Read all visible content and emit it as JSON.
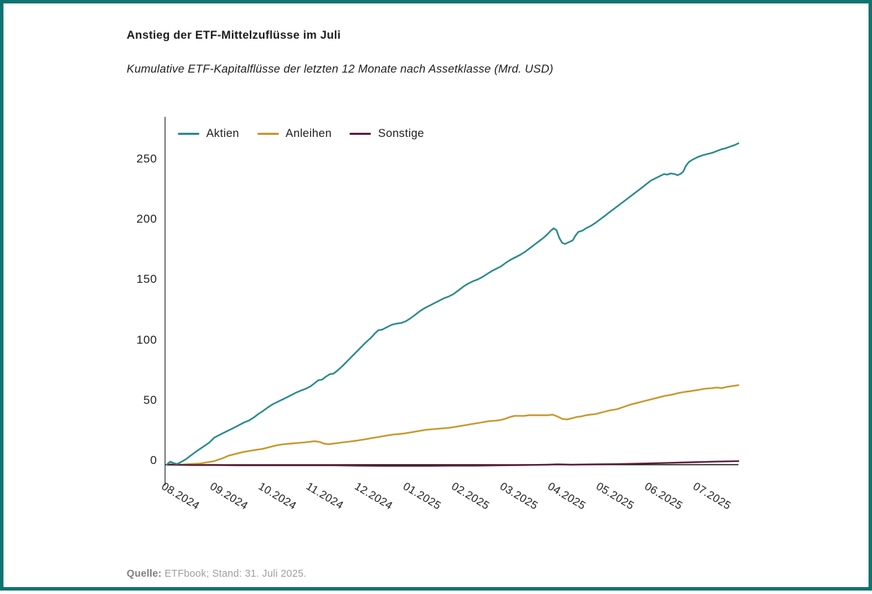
{
  "page": {
    "border_color": "#0e7471",
    "background": "#ffffff"
  },
  "header": {
    "title": "Anstieg der ETF-Mittelzuflüsse im Juli",
    "subtitle": "Kumulative ETF-Kapitalflüsse der letzten 12 Monate nach Assetklasse (Mrd. USD)"
  },
  "source": {
    "label": "Quelle:",
    "text": " ETFbook; Stand: 31. Juli 2025."
  },
  "chart_data": {
    "type": "line",
    "title": "Anstieg der ETF-Mittelzuflüsse im Juli",
    "subtitle": "Kumulative ETF-Kapitalflüsse der letzten 12 Monate nach Assetklasse (Mrd. USD)",
    "unit": "Mrd. USD",
    "grid": false,
    "legend_position": "top-left",
    "x_months": 12,
    "categories": [
      "08.2024",
      "09.2024",
      "10.2024",
      "11.2024",
      "12.2024",
      "01.2025",
      "02.2025",
      "03.2025",
      "04.2025",
      "05.2025",
      "06.2025",
      "07.2025"
    ],
    "y_ticks": [
      0,
      50,
      100,
      150,
      200,
      250
    ],
    "ylim": [
      -15,
      275
    ],
    "axis_color": "#2b2b2b",
    "baseline": {
      "value": 0,
      "color": "#141414"
    },
    "series": [
      {
        "name": "Aktien",
        "color": "#2a8a8c",
        "end_value": 266.5,
        "points": [
          [
            0,
            0
          ],
          [
            0.07,
            2.5
          ],
          [
            0.15,
            1.2
          ],
          [
            0.22,
            0.6
          ],
          [
            0.3,
            2.2
          ],
          [
            0.4,
            4.5
          ],
          [
            0.5,
            7.5
          ],
          [
            0.62,
            11
          ],
          [
            0.75,
            14.5
          ],
          [
            0.88,
            18
          ],
          [
            1.0,
            22.5
          ],
          [
            1.12,
            25
          ],
          [
            1.25,
            27.5
          ],
          [
            1.38,
            30
          ],
          [
            1.5,
            32.5
          ],
          [
            1.62,
            35
          ],
          [
            1.72,
            36.5
          ],
          [
            1.82,
            39
          ],
          [
            1.92,
            42
          ],
          [
            2.02,
            44.5
          ],
          [
            2.12,
            47.5
          ],
          [
            2.22,
            50
          ],
          [
            2.32,
            52
          ],
          [
            2.45,
            54.5
          ],
          [
            2.58,
            57
          ],
          [
            2.7,
            59.5
          ],
          [
            2.82,
            61.5
          ],
          [
            2.92,
            63
          ],
          [
            3.02,
            65
          ],
          [
            3.1,
            67.5
          ],
          [
            3.18,
            70
          ],
          [
            3.26,
            70.5
          ],
          [
            3.34,
            73
          ],
          [
            3.42,
            75
          ],
          [
            3.5,
            75.5
          ],
          [
            3.58,
            78
          ],
          [
            3.68,
            81.5
          ],
          [
            3.78,
            85.5
          ],
          [
            3.88,
            89.5
          ],
          [
            3.98,
            93.5
          ],
          [
            4.08,
            97.5
          ],
          [
            4.18,
            101.5
          ],
          [
            4.28,
            105
          ],
          [
            4.36,
            108.5
          ],
          [
            4.44,
            111.5
          ],
          [
            4.52,
            112
          ],
          [
            4.62,
            114
          ],
          [
            4.72,
            116
          ],
          [
            4.82,
            117
          ],
          [
            4.92,
            117.5
          ],
          [
            5.02,
            119
          ],
          [
            5.12,
            121.5
          ],
          [
            5.22,
            124.5
          ],
          [
            5.32,
            127.5
          ],
          [
            5.42,
            130
          ],
          [
            5.52,
            132
          ],
          [
            5.62,
            134
          ],
          [
            5.72,
            136
          ],
          [
            5.82,
            138
          ],
          [
            5.92,
            139.5
          ],
          [
            6.02,
            141.5
          ],
          [
            6.12,
            144.5
          ],
          [
            6.22,
            147.5
          ],
          [
            6.32,
            150
          ],
          [
            6.42,
            152
          ],
          [
            6.52,
            153.5
          ],
          [
            6.62,
            155.5
          ],
          [
            6.72,
            158
          ],
          [
            6.82,
            160.5
          ],
          [
            6.92,
            162.5
          ],
          [
            7.02,
            164.5
          ],
          [
            7.12,
            167.5
          ],
          [
            7.22,
            170
          ],
          [
            7.32,
            172
          ],
          [
            7.42,
            174
          ],
          [
            7.52,
            176.5
          ],
          [
            7.62,
            179.5
          ],
          [
            7.72,
            182.5
          ],
          [
            7.82,
            185.5
          ],
          [
            7.92,
            188.5
          ],
          [
            8.0,
            191.5
          ],
          [
            8.06,
            194
          ],
          [
            8.12,
            196
          ],
          [
            8.18,
            194.5
          ],
          [
            8.24,
            188
          ],
          [
            8.3,
            184
          ],
          [
            8.36,
            183
          ],
          [
            8.44,
            184.5
          ],
          [
            8.52,
            186
          ],
          [
            8.58,
            190
          ],
          [
            8.64,
            193
          ],
          [
            8.72,
            194
          ],
          [
            8.8,
            196
          ],
          [
            8.9,
            198
          ],
          [
            9.0,
            200.5
          ],
          [
            9.1,
            203.5
          ],
          [
            9.2,
            206.5
          ],
          [
            9.3,
            209.5
          ],
          [
            9.4,
            212.5
          ],
          [
            9.5,
            215.5
          ],
          [
            9.6,
            218.5
          ],
          [
            9.7,
            221.5
          ],
          [
            9.8,
            224.5
          ],
          [
            9.9,
            227.5
          ],
          [
            10.0,
            230.5
          ],
          [
            10.08,
            233
          ],
          [
            10.16,
            235.5
          ],
          [
            10.26,
            237.5
          ],
          [
            10.36,
            239.5
          ],
          [
            10.44,
            241
          ],
          [
            10.5,
            240.5
          ],
          [
            10.58,
            241.5
          ],
          [
            10.66,
            241
          ],
          [
            10.72,
            240
          ],
          [
            10.78,
            241
          ],
          [
            10.84,
            243
          ],
          [
            10.9,
            248
          ],
          [
            10.96,
            251
          ],
          [
            11.04,
            253
          ],
          [
            11.14,
            255
          ],
          [
            11.24,
            256.5
          ],
          [
            11.34,
            257.5
          ],
          [
            11.44,
            258.5
          ],
          [
            11.54,
            260
          ],
          [
            11.64,
            261.5
          ],
          [
            11.74,
            262.5
          ],
          [
            11.84,
            264
          ],
          [
            11.92,
            265
          ],
          [
            12,
            266.5
          ]
        ]
      },
      {
        "name": "Anleihen",
        "color": "#c8962a",
        "end_value": 66,
        "points": [
          [
            0,
            0
          ],
          [
            0.15,
            0.5
          ],
          [
            0.3,
            0
          ],
          [
            0.5,
            0.5
          ],
          [
            0.7,
            1
          ],
          [
            0.85,
            2
          ],
          [
            1.0,
            3
          ],
          [
            1.15,
            5
          ],
          [
            1.3,
            7.5
          ],
          [
            1.45,
            9
          ],
          [
            1.6,
            10.5
          ],
          [
            1.75,
            11.5
          ],
          [
            1.9,
            12.5
          ],
          [
            2.0,
            13
          ],
          [
            2.15,
            14.5
          ],
          [
            2.3,
            16
          ],
          [
            2.45,
            17
          ],
          [
            2.6,
            17.5
          ],
          [
            2.75,
            18
          ],
          [
            2.9,
            18.5
          ],
          [
            3.0,
            19
          ],
          [
            3.1,
            19.5
          ],
          [
            3.2,
            19
          ],
          [
            3.3,
            17.5
          ],
          [
            3.4,
            17
          ],
          [
            3.5,
            17.5
          ],
          [
            3.6,
            18
          ],
          [
            3.7,
            18.5
          ],
          [
            3.8,
            19
          ],
          [
            3.9,
            19.5
          ],
          [
            4.0,
            20
          ],
          [
            4.15,
            21
          ],
          [
            4.3,
            22
          ],
          [
            4.45,
            23
          ],
          [
            4.6,
            24
          ],
          [
            4.75,
            25
          ],
          [
            4.9,
            25.5
          ],
          [
            5.0,
            26
          ],
          [
            5.15,
            27
          ],
          [
            5.3,
            28
          ],
          [
            5.45,
            29
          ],
          [
            5.6,
            29.5
          ],
          [
            5.75,
            30
          ],
          [
            5.9,
            30.5
          ],
          [
            6.0,
            31
          ],
          [
            6.15,
            32
          ],
          [
            6.3,
            33
          ],
          [
            6.45,
            34
          ],
          [
            6.6,
            35
          ],
          [
            6.75,
            36
          ],
          [
            6.9,
            36.5
          ],
          [
            7.0,
            37
          ],
          [
            7.1,
            38
          ],
          [
            7.2,
            39.5
          ],
          [
            7.3,
            40.5
          ],
          [
            7.4,
            40.5
          ],
          [
            7.5,
            40.5
          ],
          [
            7.6,
            41
          ],
          [
            7.7,
            41
          ],
          [
            7.8,
            41
          ],
          [
            7.9,
            41
          ],
          [
            8.0,
            41
          ],
          [
            8.1,
            41.5
          ],
          [
            8.2,
            40
          ],
          [
            8.3,
            38
          ],
          [
            8.4,
            37.5
          ],
          [
            8.5,
            38.5
          ],
          [
            8.6,
            39.5
          ],
          [
            8.7,
            40
          ],
          [
            8.8,
            41
          ],
          [
            8.9,
            41.5
          ],
          [
            9.0,
            42
          ],
          [
            9.15,
            43.5
          ],
          [
            9.3,
            45
          ],
          [
            9.45,
            46
          ],
          [
            9.6,
            48
          ],
          [
            9.75,
            50
          ],
          [
            9.9,
            51.5
          ],
          [
            10.0,
            52.5
          ],
          [
            10.15,
            54
          ],
          [
            10.3,
            55.5
          ],
          [
            10.45,
            57
          ],
          [
            10.6,
            58
          ],
          [
            10.75,
            59.5
          ],
          [
            10.9,
            60.5
          ],
          [
            11.0,
            61
          ],
          [
            11.15,
            62
          ],
          [
            11.3,
            63
          ],
          [
            11.45,
            63.5
          ],
          [
            11.55,
            64
          ],
          [
            11.65,
            63.5
          ],
          [
            11.75,
            64.5
          ],
          [
            11.85,
            65
          ],
          [
            12,
            66
          ]
        ]
      },
      {
        "name": "Sonstige",
        "color": "#5e1c38",
        "end_value": 3,
        "points": [
          [
            0,
            0
          ],
          [
            0.5,
            -0.3
          ],
          [
            1,
            -0.3
          ],
          [
            1.5,
            -0.5
          ],
          [
            2,
            -0.5
          ],
          [
            2.5,
            -0.5
          ],
          [
            3,
            -0.5
          ],
          [
            3.5,
            -0.5
          ],
          [
            4,
            -0.8
          ],
          [
            4.5,
            -1
          ],
          [
            5,
            -1
          ],
          [
            5.5,
            -1
          ],
          [
            6,
            -0.8
          ],
          [
            6.5,
            -0.8
          ],
          [
            7,
            -0.5
          ],
          [
            7.5,
            -0.3
          ],
          [
            8,
            0
          ],
          [
            8.2,
            0.3
          ],
          [
            8.5,
            0
          ],
          [
            9,
            0.3
          ],
          [
            9.5,
            0.5
          ],
          [
            10,
            1
          ],
          [
            10.5,
            1.5
          ],
          [
            11,
            2
          ],
          [
            11.5,
            2.5
          ],
          [
            12,
            3
          ]
        ]
      }
    ]
  }
}
